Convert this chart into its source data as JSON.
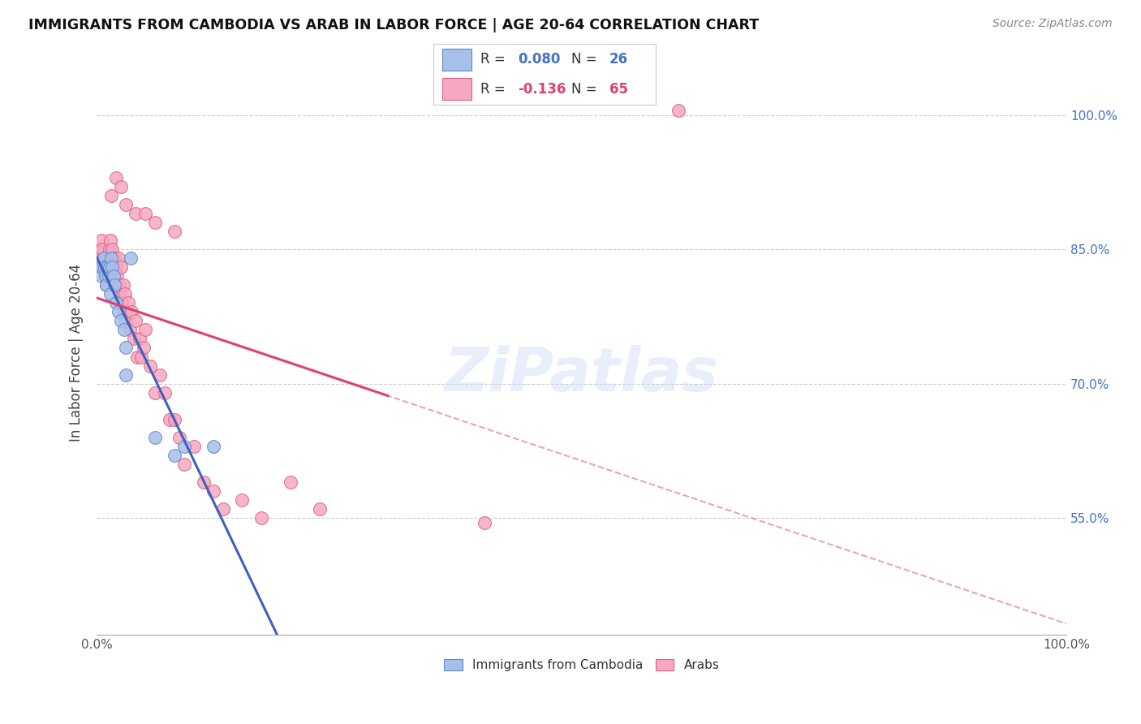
{
  "title": "IMMIGRANTS FROM CAMBODIA VS ARAB IN LABOR FORCE | AGE 20-64 CORRELATION CHART",
  "source": "Source: ZipAtlas.com",
  "ylabel": "In Labor Force | Age 20-64",
  "xlim": [
    0.0,
    1.0
  ],
  "ylim": [
    0.42,
    1.05
  ],
  "yticks": [
    0.55,
    0.7,
    0.85,
    1.0
  ],
  "ytick_labels": [
    "55.0%",
    "70.0%",
    "85.0%",
    "100.0%"
  ],
  "cambodia_color": "#a8bfe8",
  "arab_color": "#f5a8c0",
  "cambodia_edge": "#6088cc",
  "arab_edge": "#e06080",
  "line_cambodia_color": "#4060c0",
  "line_arab_color": "#e04070",
  "dash_cambodia_color": "#a0b8e0",
  "dash_arab_color": "#e08090",
  "watermark": "ZiPatlas",
  "cambodia_x": [
    0.003,
    0.005,
    0.006,
    0.007,
    0.008,
    0.009,
    0.01,
    0.011,
    0.012,
    0.013,
    0.014,
    0.015,
    0.016,
    0.017,
    0.018,
    0.02,
    0.022,
    0.025,
    0.028,
    0.03,
    0.035,
    0.06,
    0.08,
    0.09,
    0.12,
    0.03
  ],
  "cambodia_y": [
    0.83,
    0.82,
    0.83,
    0.84,
    0.83,
    0.82,
    0.81,
    0.83,
    0.82,
    0.83,
    0.8,
    0.84,
    0.83,
    0.82,
    0.81,
    0.79,
    0.78,
    0.77,
    0.76,
    0.74,
    0.84,
    0.64,
    0.62,
    0.63,
    0.63,
    0.71
  ],
  "arab_x": [
    0.002,
    0.003,
    0.004,
    0.005,
    0.006,
    0.007,
    0.008,
    0.009,
    0.01,
    0.011,
    0.012,
    0.013,
    0.014,
    0.015,
    0.016,
    0.017,
    0.018,
    0.019,
    0.02,
    0.021,
    0.022,
    0.023,
    0.024,
    0.025,
    0.026,
    0.027,
    0.028,
    0.029,
    0.03,
    0.032,
    0.034,
    0.036,
    0.038,
    0.04,
    0.042,
    0.044,
    0.046,
    0.048,
    0.05,
    0.055,
    0.06,
    0.065,
    0.07,
    0.075,
    0.08,
    0.085,
    0.09,
    0.1,
    0.11,
    0.12,
    0.13,
    0.15,
    0.17,
    0.2,
    0.23,
    0.015,
    0.02,
    0.025,
    0.03,
    0.04,
    0.05,
    0.06,
    0.08,
    0.6,
    0.4
  ],
  "arab_y": [
    0.84,
    0.83,
    0.85,
    0.86,
    0.85,
    0.84,
    0.83,
    0.82,
    0.81,
    0.84,
    0.83,
    0.85,
    0.86,
    0.84,
    0.85,
    0.83,
    0.84,
    0.81,
    0.83,
    0.82,
    0.84,
    0.81,
    0.8,
    0.83,
    0.79,
    0.81,
    0.78,
    0.8,
    0.77,
    0.79,
    0.76,
    0.78,
    0.75,
    0.77,
    0.73,
    0.75,
    0.73,
    0.74,
    0.76,
    0.72,
    0.69,
    0.71,
    0.69,
    0.66,
    0.66,
    0.64,
    0.61,
    0.63,
    0.59,
    0.58,
    0.56,
    0.57,
    0.55,
    0.59,
    0.56,
    0.91,
    0.93,
    0.92,
    0.9,
    0.89,
    0.89,
    0.88,
    0.87,
    1.005,
    0.545
  ],
  "R_cambodia": 0.08,
  "N_cambodia": 26,
  "R_arab": -0.136,
  "N_arab": 65
}
